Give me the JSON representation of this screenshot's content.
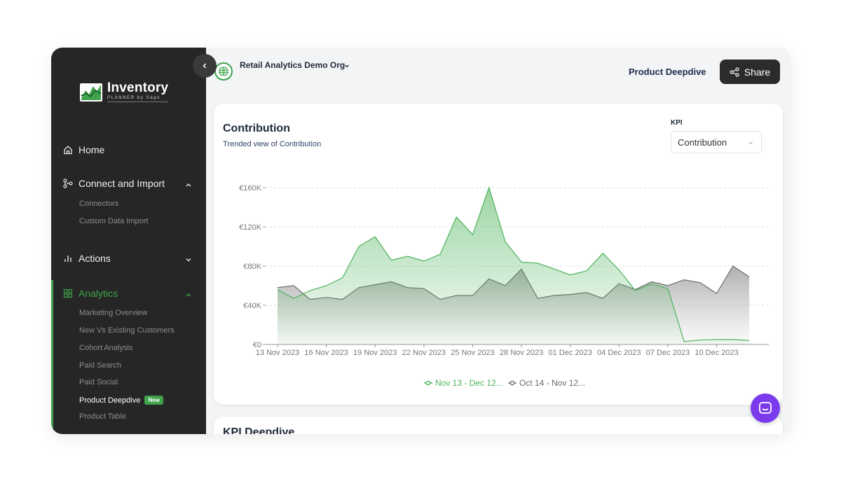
{
  "sidebar": {
    "logo": {
      "title": "Inventory",
      "subtitle": "PLANNER by Sage"
    },
    "nav": [
      {
        "label": "Home",
        "icon": "home-icon"
      },
      {
        "label": "Connect and Import",
        "icon": "connect-icon",
        "expanded": true,
        "items": [
          "Connectors",
          "Custom Data Import"
        ]
      },
      {
        "label": "Actions",
        "icon": "bar-chart-icon",
        "expanded": false
      },
      {
        "label": "Analytics",
        "icon": "grid-icon",
        "expanded": true,
        "active": true,
        "items": [
          "Marketing Overview",
          "New Vs Existing Customers",
          "Cohort Analysis",
          "Paid Search",
          "Paid Social",
          "Product Deepdive",
          "Product Table"
        ]
      }
    ],
    "active_item": "Product Deepdive",
    "new_badge": "New"
  },
  "header": {
    "org": "Retail Analytics Demo Org",
    "page": "Product Deepdive",
    "share_label": "Share"
  },
  "card": {
    "title": "Contribution",
    "subtitle": "Trended view of Contribution",
    "kpi_label": "KPI",
    "kpi_value": "Contribution"
  },
  "chart_data": {
    "type": "area",
    "title": "Contribution",
    "x_ticks": [
      "13 Nov 2023",
      "16 Nov 2023",
      "19 Nov 2023",
      "22 Nov 2023",
      "25 Nov 2023",
      "28 Nov 2023",
      "01 Dec 2023",
      "04 Dec 2023",
      "07 Dec 2023",
      "10 Dec 2023"
    ],
    "y_ticks": [
      "€0",
      "€40K",
      "€80K",
      "€120K",
      "€160K"
    ],
    "ylim": [
      0,
      160000
    ],
    "grid": true,
    "legend_position": "bottom",
    "series": [
      {
        "name": "Nov 13 - Dec 12...",
        "color": "#4cb35a",
        "values": [
          56000,
          47000,
          55000,
          60000,
          68000,
          100000,
          110000,
          86000,
          90000,
          85000,
          92000,
          130000,
          112000,
          160000,
          105000,
          84000,
          83000,
          77000,
          71000,
          75000,
          93000,
          76000,
          55000,
          62000,
          57000,
          3000,
          4500,
          5000,
          5000,
          4000
        ]
      },
      {
        "name": "Oct 14 - Nov 12...",
        "color": "#6b6b6b",
        "values": [
          58000,
          60000,
          46000,
          48000,
          46000,
          58000,
          61000,
          64000,
          58000,
          57000,
          46000,
          50000,
          50000,
          67000,
          60000,
          77000,
          47000,
          50000,
          51000,
          53000,
          47000,
          62000,
          56000,
          64000,
          60000,
          66000,
          63000,
          52000,
          80000,
          69000
        ]
      }
    ]
  },
  "card2": {
    "title": "KPI Deepdive"
  }
}
